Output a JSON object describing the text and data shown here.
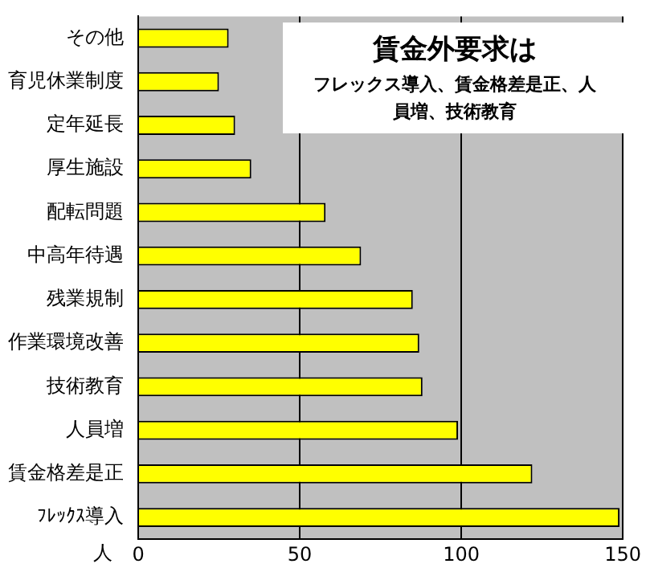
{
  "chart_data": {
    "type": "bar",
    "orientation": "horizontal",
    "title": "賃金外要求は",
    "subtitle": "フレックス導入、賃金格差是正、人員増、技術教育",
    "xlabel": "人",
    "categories": [
      "その他",
      "育児休業制度",
      "定年延長",
      "厚生施設",
      "配転問題",
      "中高年待遇",
      "残業規制",
      "作業環境改善",
      "技術教育",
      "人員増",
      "賃金格差是正",
      "ﾌﾚｯｸｽ導入"
    ],
    "values": [
      28,
      25,
      30,
      35,
      58,
      69,
      85,
      87,
      88,
      99,
      122,
      149
    ],
    "color": "#ffff00",
    "xlim": [
      0,
      150
    ],
    "xticks": [
      0,
      50,
      100,
      150
    ],
    "grid": "x",
    "legend": false
  }
}
